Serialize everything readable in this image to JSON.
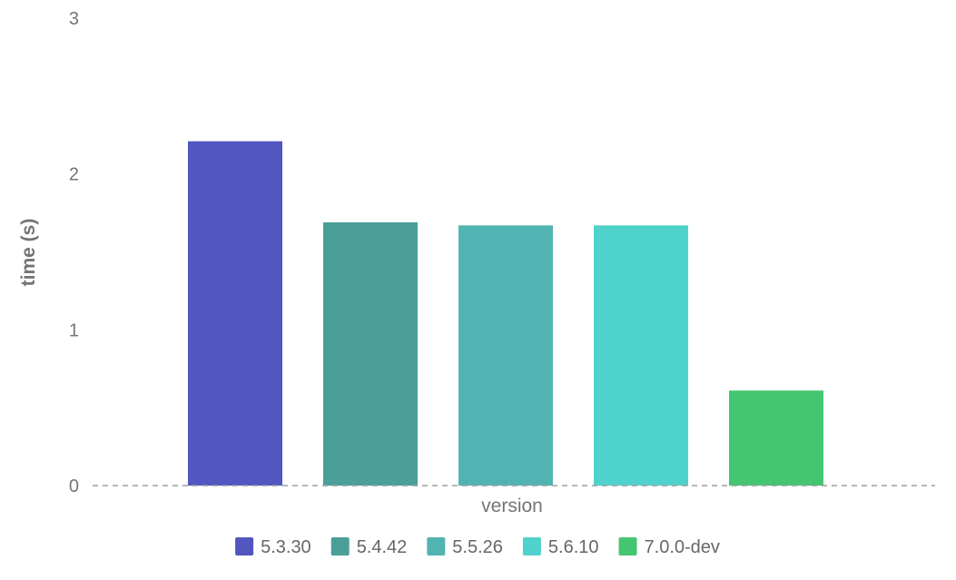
{
  "chart_data": {
    "type": "bar",
    "categories": [
      "5.3.30",
      "5.4.42",
      "5.5.26",
      "5.6.10",
      "7.0.0-dev"
    ],
    "values": [
      2.21,
      1.69,
      1.67,
      1.67,
      0.61
    ],
    "colors": [
      "#5156c0",
      "#4a9f98",
      "#51b4b3",
      "#50d2cc",
      "#44c571"
    ],
    "xlabel": "version",
    "ylabel": "time (s)",
    "ylim": [
      0,
      3
    ],
    "yticks": [
      "0",
      "1",
      "2",
      "3"
    ],
    "grid": false,
    "baseline": "dashed",
    "legend": {
      "position": "bottom",
      "entries": [
        "5.3.30",
        "5.4.42",
        "5.5.26",
        "5.6.10",
        "7.0.0-dev"
      ]
    }
  }
}
